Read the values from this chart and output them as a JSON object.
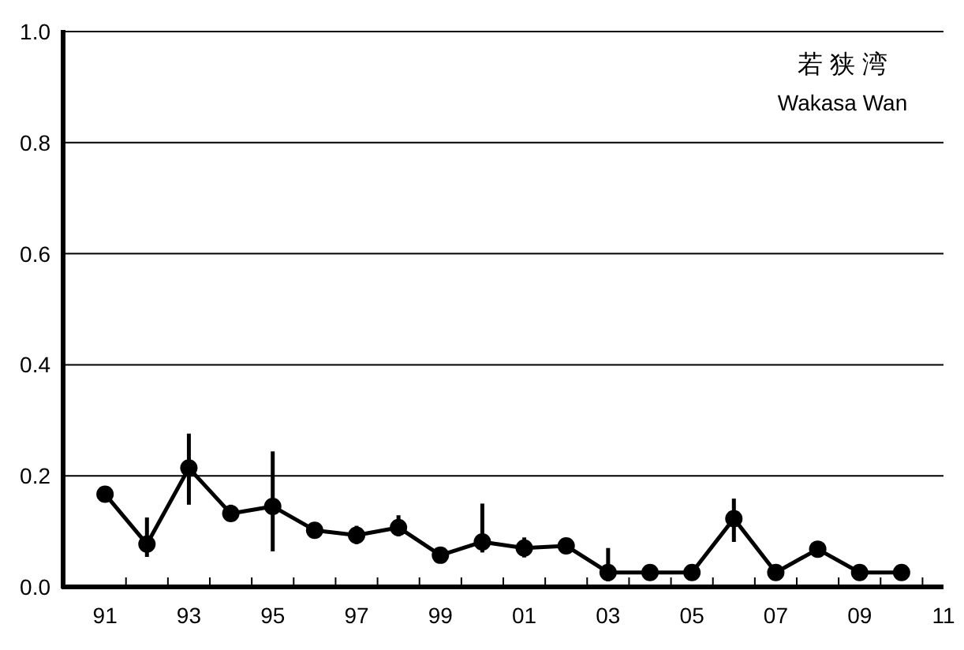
{
  "chart_data": {
    "type": "line",
    "annotations": [
      "若 狭 湾",
      "Wakasa Wan"
    ],
    "x": [
      1991,
      1992,
      1993,
      1994,
      1995,
      1996,
      1997,
      1998,
      1999,
      2000,
      2001,
      2002,
      2003,
      2004,
      2005,
      2006,
      2007,
      2008,
      2009,
      2010
    ],
    "series": [
      {
        "color": "#000000",
        "values": [
          0.167,
          0.077,
          0.214,
          0.132,
          0.145,
          0.102,
          0.093,
          0.107,
          0.057,
          0.081,
          0.07,
          0.074,
          0.026,
          0.026,
          0.026,
          0.123,
          0.026,
          0.068,
          0.026,
          0.026
        ],
        "errors": [
          null,
          [
            0.054,
            0.125
          ],
          [
            0.148,
            0.276
          ],
          [
            0.119,
            0.148
          ],
          [
            0.064,
            0.244
          ],
          null,
          [
            0.077,
            0.11
          ],
          [
            0.091,
            0.129
          ],
          null,
          [
            0.062,
            0.15
          ],
          [
            0.053,
            0.089
          ],
          null,
          [
            0.01,
            0.07
          ],
          null,
          null,
          [
            0.081,
            0.159
          ],
          null,
          null,
          null,
          null
        ]
      }
    ],
    "xlim": [
      1990,
      2011
    ],
    "xticks": [
      {
        "value": 1991,
        "label": "91"
      },
      {
        "value": 1991.5,
        "label": null
      },
      {
        "value": 1992.5,
        "label": null
      },
      {
        "value": 1993,
        "label": "93"
      },
      {
        "value": 1993.5,
        "label": null
      },
      {
        "value": 1994.5,
        "label": null
      },
      {
        "value": 1995,
        "label": "95"
      },
      {
        "value": 1995.5,
        "label": null
      },
      {
        "value": 1996.5,
        "label": null
      },
      {
        "value": 1997,
        "label": "97"
      },
      {
        "value": 1997.5,
        "label": null
      },
      {
        "value": 1998.5,
        "label": null
      },
      {
        "value": 1999,
        "label": "99"
      },
      {
        "value": 1999.5,
        "label": null
      },
      {
        "value": 2000.5,
        "label": null
      },
      {
        "value": 2001,
        "label": "01"
      },
      {
        "value": 2001.5,
        "label": null
      },
      {
        "value": 2002.5,
        "label": null
      },
      {
        "value": 2003,
        "label": "03"
      },
      {
        "value": 2003.5,
        "label": null
      },
      {
        "value": 2004.5,
        "label": null
      },
      {
        "value": 2005,
        "label": "05"
      },
      {
        "value": 2005.5,
        "label": null
      },
      {
        "value": 2006.5,
        "label": null
      },
      {
        "value": 2007,
        "label": "07"
      },
      {
        "value": 2007.5,
        "label": null
      },
      {
        "value": 2008.5,
        "label": null
      },
      {
        "value": 2009,
        "label": "09"
      },
      {
        "value": 2009.5,
        "label": null
      },
      {
        "value": 2010.5,
        "label": null
      },
      {
        "value": 2011,
        "label": "11"
      }
    ],
    "ylim": [
      0,
      1
    ],
    "yticks": [
      {
        "value": 0,
        "label": "0.0"
      },
      {
        "value": 0.2,
        "label": "0.2"
      },
      {
        "value": 0.4,
        "label": "0.4"
      },
      {
        "value": 0.6,
        "label": "0.6"
      },
      {
        "value": 0.8,
        "label": "0.8"
      },
      {
        "value": 1,
        "label": "1.0"
      }
    ],
    "grid": "y",
    "marker": "circle",
    "line_style": "solid"
  }
}
